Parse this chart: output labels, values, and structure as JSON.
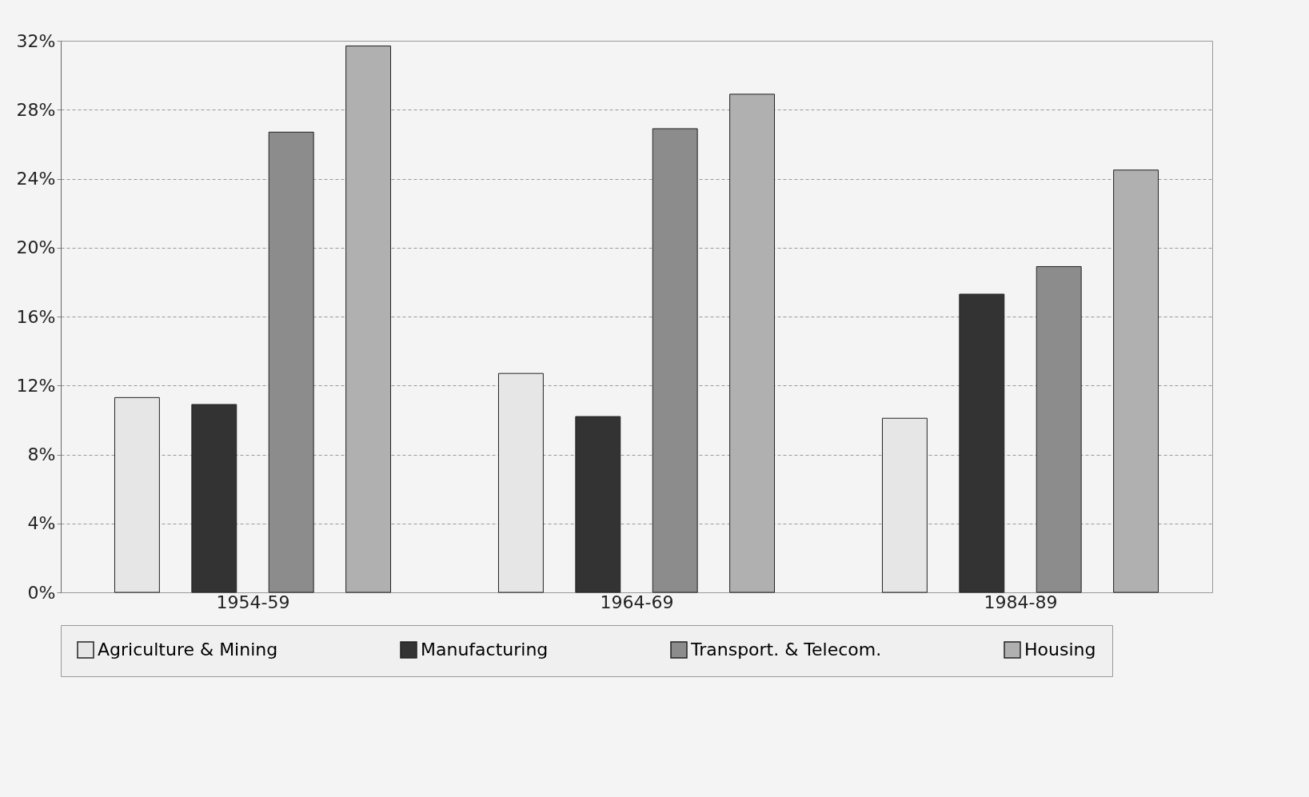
{
  "chart_data": {
    "type": "bar",
    "categories": [
      "1954-59",
      "1964-69",
      "1984-89"
    ],
    "series": [
      {
        "name": "Agriculture & Mining",
        "color": "#e6e6e6",
        "values": [
          11.3,
          12.7,
          10.1
        ]
      },
      {
        "name": "Manufacturing",
        "color": "#333333",
        "values": [
          10.9,
          10.2,
          17.3
        ]
      },
      {
        "name": "Transport. & Telecom.",
        "color": "#8c8c8c",
        "values": [
          26.7,
          26.9,
          18.9
        ]
      },
      {
        "name": "Housing",
        "color": "#b0b0b0",
        "values": [
          31.7,
          28.9,
          24.5
        ]
      }
    ],
    "ylim": [
      0,
      32
    ],
    "yticks": [
      {
        "value": 0,
        "label": "0%"
      },
      {
        "value": 4,
        "label": "4%"
      },
      {
        "value": 8,
        "label": "8%"
      },
      {
        "value": 12,
        "label": "12%"
      },
      {
        "value": 16,
        "label": "16%"
      },
      {
        "value": 20,
        "label": "20%"
      },
      {
        "value": 24,
        "label": "24%"
      },
      {
        "value": 28,
        "label": "28%"
      },
      {
        "value": 32,
        "label": "32%"
      }
    ],
    "grid": "y",
    "legend": "bottom"
  }
}
